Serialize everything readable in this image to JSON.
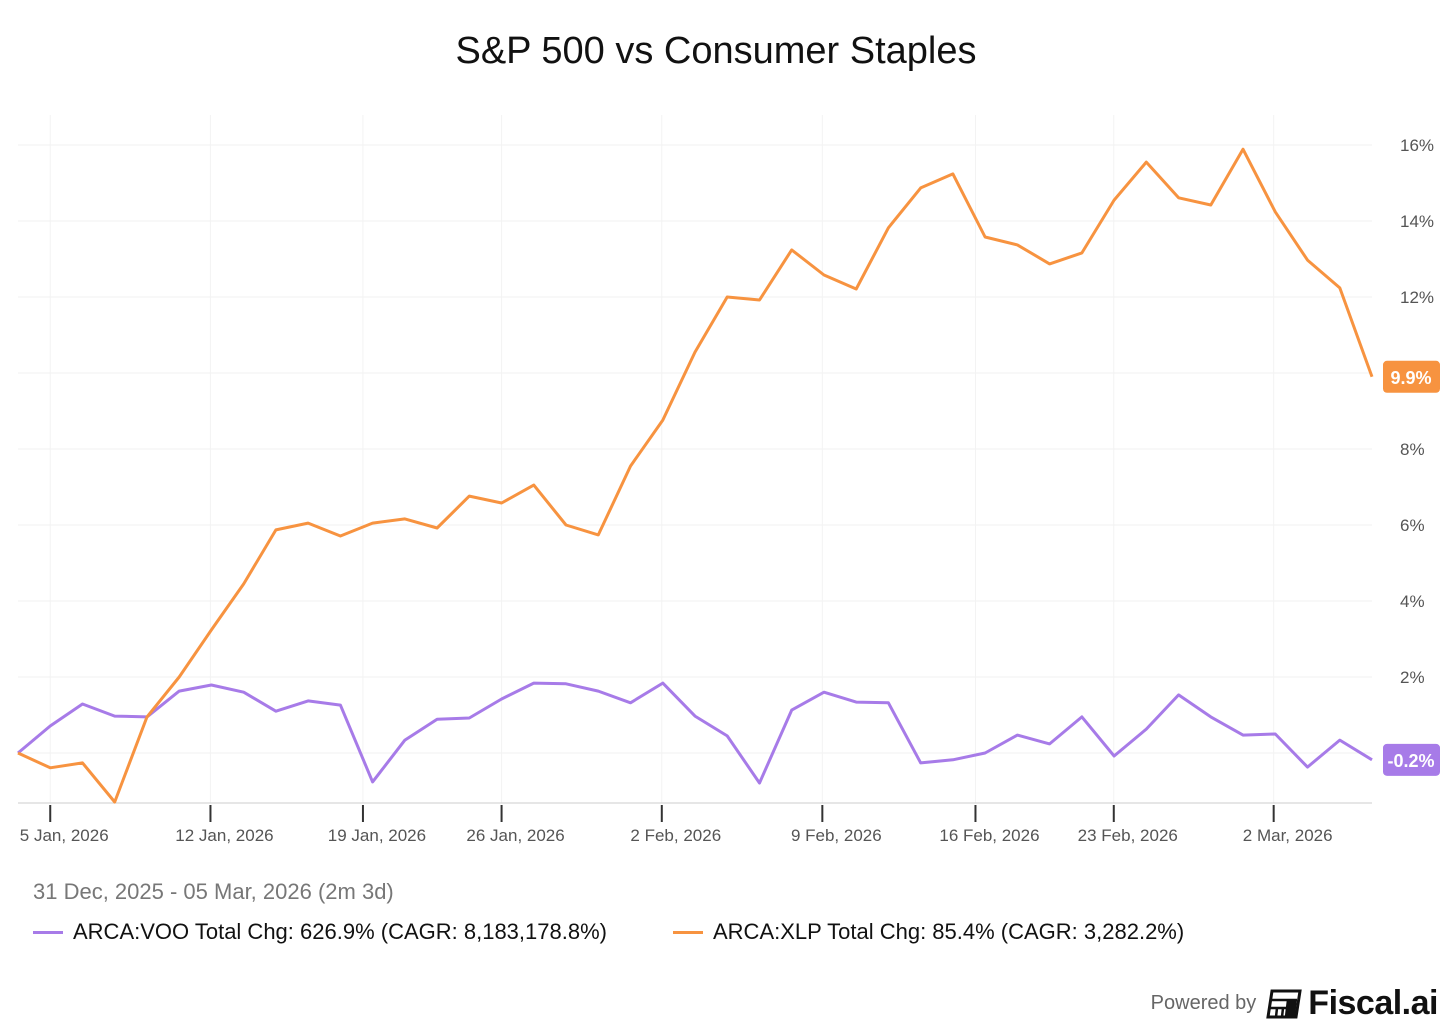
{
  "chart_data": {
    "type": "line",
    "title": "S&P 500 vs Consumer Staples",
    "xlabel": "",
    "ylabel": "",
    "ylim": [
      -1.3,
      16.8
    ],
    "y_unit": "%",
    "grid": true,
    "y_ticks": [
      2,
      4,
      6,
      8,
      12,
      14,
      16
    ],
    "y_gridlines": [
      0,
      2,
      4,
      6,
      8,
      10,
      12,
      14,
      16
    ],
    "x_ticks": [
      {
        "label": "5 Jan, 2026",
        "index": 1.0
      },
      {
        "label": "12 Jan, 2026",
        "index": 5.97
      },
      {
        "label": "19 Jan, 2026",
        "index": 10.7
      },
      {
        "label": "26 Jan, 2026",
        "index": 15.0
      },
      {
        "label": "2 Feb, 2026",
        "index": 19.97
      },
      {
        "label": "9 Feb, 2026",
        "index": 24.95
      },
      {
        "label": "16 Feb, 2026",
        "index": 29.7
      },
      {
        "label": "23 Feb, 2026",
        "index": 33.99
      },
      {
        "label": "2 Mar, 2026",
        "index": 38.95
      }
    ],
    "series": [
      {
        "name": "ARCA:VOO",
        "color": "#a77be8",
        "end_label": "-0.2%",
        "values": [
          0,
          0.71,
          1.29,
          0.97,
          0.95,
          1.63,
          1.79,
          1.6,
          1.1,
          1.37,
          1.26,
          -0.76,
          0.34,
          0.89,
          0.92,
          1.42,
          1.84,
          1.82,
          1.63,
          1.32,
          1.84,
          0.97,
          0.45,
          -0.79,
          1.13,
          1.6,
          1.34,
          1.32,
          -0.26,
          -0.18,
          0.0,
          0.47,
          0.24,
          0.95,
          -0.08,
          0.63,
          1.53,
          0.95,
          0.47,
          0.5,
          -0.37,
          0.34,
          -0.18
        ]
      },
      {
        "name": "ARCA:XLP",
        "color": "#f79340",
        "end_label": "9.9%",
        "values": [
          0,
          -0.39,
          -0.26,
          -1.29,
          0.95,
          2.0,
          3.24,
          4.45,
          5.87,
          6.05,
          5.71,
          6.05,
          6.16,
          5.92,
          6.76,
          6.58,
          7.05,
          6.0,
          5.74,
          7.55,
          8.76,
          10.55,
          12.0,
          11.92,
          13.24,
          12.58,
          12.21,
          13.82,
          14.87,
          15.24,
          13.58,
          13.37,
          12.87,
          13.16,
          14.55,
          15.55,
          14.61,
          14.42,
          15.89,
          14.24,
          12.97,
          12.24,
          9.9
        ]
      }
    ],
    "date_range": "31 Dec, 2025 - 05 Mar, 2026 (2m 3d)",
    "legend": [
      {
        "label": "ARCA:VOO Total Chg: 626.9% (CAGR: 8,183,178.8%)",
        "color": "#a77be8"
      },
      {
        "label": "ARCA:XLP Total Chg: 85.4% (CAGR: 3,282.2%)",
        "color": "#f79340"
      }
    ],
    "legend_placement": "bottom-left"
  },
  "footer": {
    "powered_by": "Powered by",
    "brand": "Fiscal.ai"
  }
}
